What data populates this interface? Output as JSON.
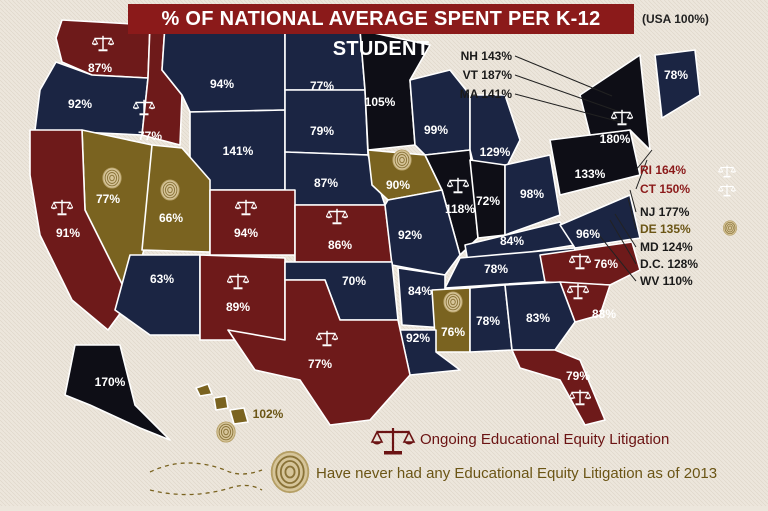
{
  "header": {
    "title": "% OF NATIONAL AVERAGE SPENT PER K-12 STUDENT",
    "note": "(USA 100%)"
  },
  "colors": {
    "navy": "#1b2543",
    "litigation": "#6e1a1a",
    "no_litigation": "#7a6320",
    "black": "#0e0e16",
    "label_red": "#8b1a1a",
    "label_gold": "#6b5515"
  },
  "legend": {
    "litigation": "Ongoing Educational Equity Litigation",
    "never": "Have never had any Educational Equity Litigation as of 2013"
  },
  "states": [
    {
      "id": "WA",
      "value": "87%",
      "category": "litigation"
    },
    {
      "id": "OR",
      "value": "92%",
      "category": "navy"
    },
    {
      "id": "ID",
      "value": "77%",
      "category": "litigation"
    },
    {
      "id": "MT",
      "value": "94%",
      "category": "navy"
    },
    {
      "id": "WY",
      "value": "141%",
      "category": "navy"
    },
    {
      "id": "ND",
      "value": "77%",
      "category": "navy"
    },
    {
      "id": "SD",
      "value": "79%",
      "category": "navy"
    },
    {
      "id": "NE",
      "value": "87%",
      "category": "navy"
    },
    {
      "id": "MN",
      "value": "105%",
      "category": "black"
    },
    {
      "id": "WI",
      "value": "99%",
      "category": "navy"
    },
    {
      "id": "MI",
      "value": "129%",
      "category": "navy"
    },
    {
      "id": "IA",
      "value": "90%",
      "category": "no_litigation"
    },
    {
      "id": "IL",
      "value": "118%",
      "category": "black",
      "litigation": true
    },
    {
      "id": "IN",
      "value": "72%",
      "category": "black"
    },
    {
      "id": "OH",
      "value": "98%",
      "category": "navy"
    },
    {
      "id": "PA",
      "value": "133%",
      "category": "black"
    },
    {
      "id": "NY",
      "value": "180%",
      "category": "black",
      "litigation": true
    },
    {
      "id": "ME",
      "value": "78%",
      "category": "navy"
    },
    {
      "id": "NV",
      "value": "77%",
      "category": "no_litigation"
    },
    {
      "id": "UT",
      "value": "66%",
      "category": "no_litigation"
    },
    {
      "id": "CO",
      "value": "94%",
      "category": "litigation"
    },
    {
      "id": "KS",
      "value": "86%",
      "category": "litigation"
    },
    {
      "id": "MO",
      "value": "92%",
      "category": "navy"
    },
    {
      "id": "KY",
      "value": "84%",
      "category": "navy"
    },
    {
      "id": "VA",
      "value": "96%",
      "category": "navy"
    },
    {
      "id": "CA",
      "value": "91%",
      "category": "litigation"
    },
    {
      "id": "AZ",
      "value": "63%",
      "category": "navy"
    },
    {
      "id": "NM",
      "value": "89%",
      "category": "litigation"
    },
    {
      "id": "OK",
      "value": "70%",
      "category": "navy"
    },
    {
      "id": "AR",
      "value": "84%",
      "category": "navy"
    },
    {
      "id": "TN",
      "value": "78%",
      "category": "navy"
    },
    {
      "id": "NC",
      "value": "76%",
      "category": "litigation"
    },
    {
      "id": "SC",
      "value": "83%",
      "category": "litigation"
    },
    {
      "id": "MS",
      "value": "76%",
      "category": "no_litigation"
    },
    {
      "id": "AL",
      "value": "78%",
      "category": "navy"
    },
    {
      "id": "GA",
      "value": "83%",
      "category": "navy"
    },
    {
      "id": "LA",
      "value": "92%",
      "category": "navy"
    },
    {
      "id": "TX",
      "value": "77%",
      "category": "litigation"
    },
    {
      "id": "FL",
      "value": "79%",
      "category": "litigation"
    },
    {
      "id": "AK",
      "value": "170%",
      "category": "black"
    },
    {
      "id": "HI",
      "value": "102%",
      "category": "no_litigation"
    }
  ],
  "callouts": [
    {
      "text": "NH 143%",
      "color": "dark"
    },
    {
      "text": "VT 187%",
      "color": "dark"
    },
    {
      "text": "MA 141%",
      "color": "dark"
    },
    {
      "text": "RI 164%",
      "color": "red"
    },
    {
      "text": "CT 150%",
      "color": "red"
    },
    {
      "text": "NJ 177%",
      "color": "dark"
    },
    {
      "text": "DE 135%",
      "color": "gold"
    },
    {
      "text": "MD 124%",
      "color": "dark"
    },
    {
      "text": "D.C. 128%",
      "color": "dark"
    },
    {
      "text": "WV 110%",
      "color": "dark"
    }
  ]
}
